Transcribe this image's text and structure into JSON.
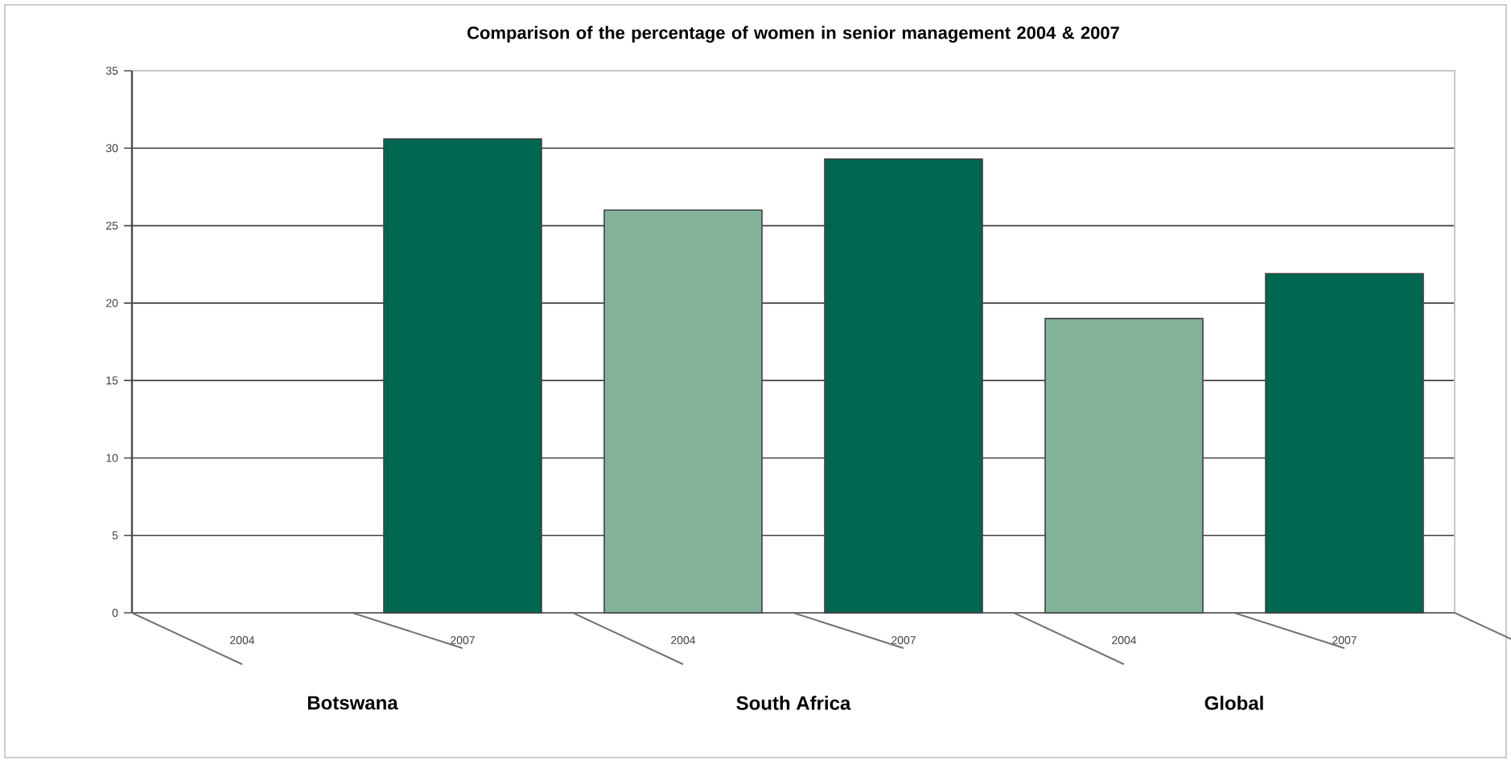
{
  "chart_data": {
    "type": "bar",
    "title": "Comparison of the percentage of women in senior management 2004 & 2007",
    "categories": [
      "2004",
      "2007",
      "2004",
      "2007",
      "2004",
      "2007"
    ],
    "values": [
      null,
      30.6,
      26,
      29.3,
      19,
      21.9
    ],
    "colors": [
      "#82b39a",
      "#006650",
      "#82b39a",
      "#006650",
      "#82b39a",
      "#006650"
    ],
    "annotations": [
      "Botswana",
      "South Africa",
      "Global"
    ],
    "ylim": [
      0,
      35
    ],
    "yticks": [
      0,
      5,
      10,
      15,
      20,
      25,
      30,
      35
    ],
    "grid": "y"
  }
}
